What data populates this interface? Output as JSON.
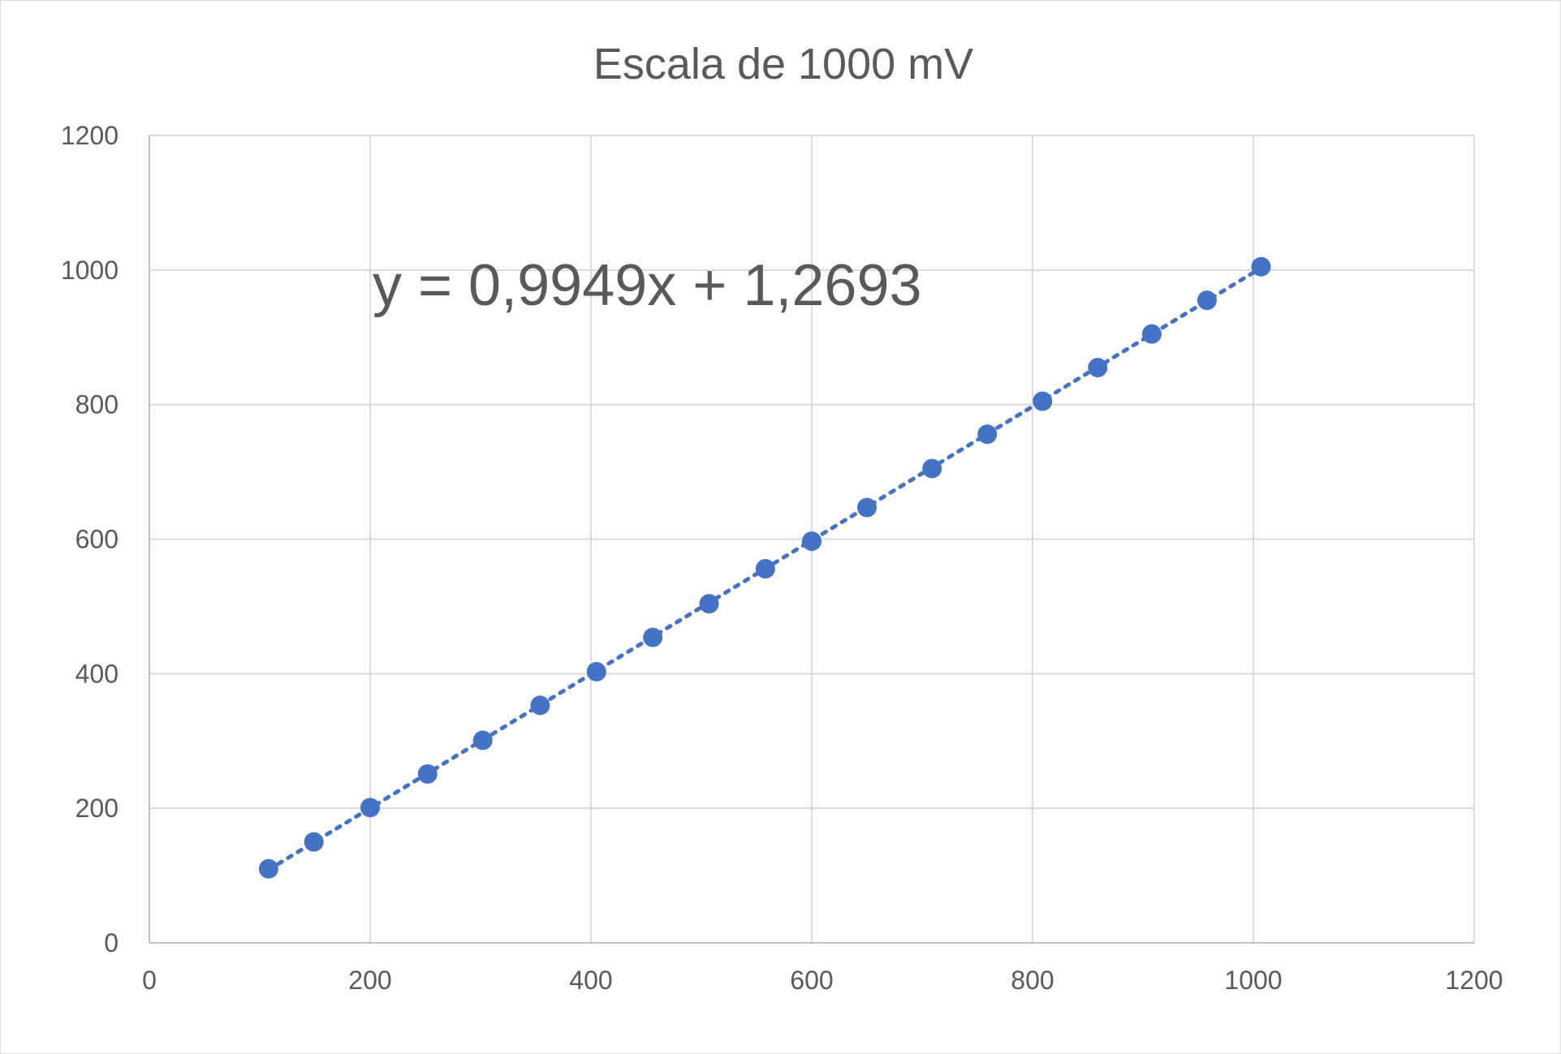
{
  "chart_data": {
    "type": "scatter",
    "title": "Escala de 1000 mV",
    "xlabel": "",
    "ylabel": "",
    "xlim": [
      0,
      1200
    ],
    "ylim": [
      0,
      1200
    ],
    "x_ticks": [
      "0",
      "200",
      "400",
      "600",
      "800",
      "1000",
      "1200"
    ],
    "y_ticks": [
      "0",
      "200",
      "400",
      "600",
      "800",
      "1000",
      "1200"
    ],
    "grid": true,
    "legend": "none",
    "series": [
      {
        "color": "#4472c4",
        "points": [
          {
            "x": 108,
            "y": 110
          },
          {
            "x": 149,
            "y": 150
          },
          {
            "x": 200,
            "y": 201
          },
          {
            "x": 252,
            "y": 251
          },
          {
            "x": 302,
            "y": 301
          },
          {
            "x": 354,
            "y": 353
          },
          {
            "x": 405,
            "y": 403
          },
          {
            "x": 456,
            "y": 454
          },
          {
            "x": 507,
            "y": 504
          },
          {
            "x": 558,
            "y": 556
          },
          {
            "x": 600,
            "y": 597
          },
          {
            "x": 650,
            "y": 647
          },
          {
            "x": 709,
            "y": 705
          },
          {
            "x": 759,
            "y": 756
          },
          {
            "x": 809,
            "y": 805
          },
          {
            "x": 859,
            "y": 855
          },
          {
            "x": 908,
            "y": 905
          },
          {
            "x": 958,
            "y": 955
          },
          {
            "x": 1007,
            "y": 1005
          }
        ]
      }
    ],
    "trendline": {
      "type": "linear",
      "slope": 0.9949,
      "intercept": 1.2693,
      "x_range": [
        108,
        1007
      ],
      "style": "dotted",
      "equation_label": "y = 0,9949x + 1,2693"
    }
  }
}
